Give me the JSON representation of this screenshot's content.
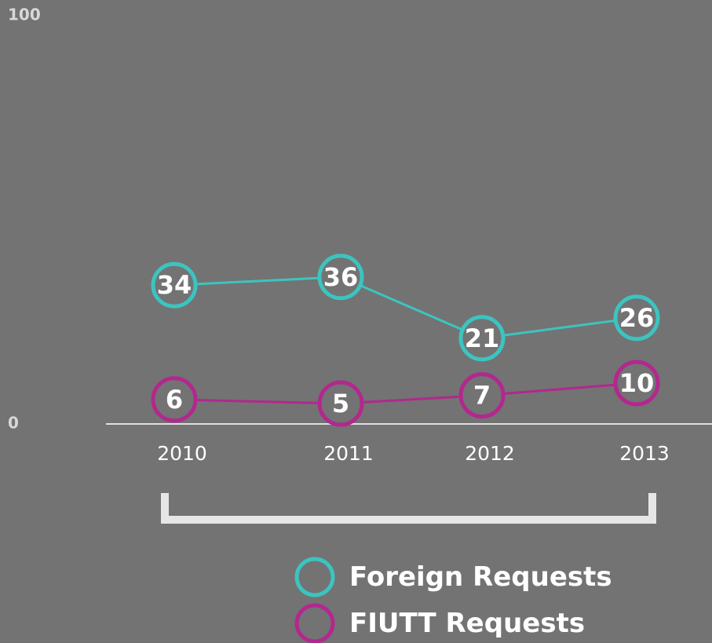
{
  "chart_data": {
    "type": "line",
    "categories": [
      "2010",
      "2011",
      "2012",
      "2013"
    ],
    "series": [
      {
        "name": "Foreign Requests",
        "color": "#3cc4c0",
        "values": [
          34,
          36,
          21,
          26
        ]
      },
      {
        "name": "FIUTT Requests",
        "color": "#b3278f",
        "values": [
          6,
          5,
          7,
          10
        ]
      }
    ],
    "ylim": [
      0,
      100
    ],
    "yticks": [
      0,
      100
    ]
  }
}
